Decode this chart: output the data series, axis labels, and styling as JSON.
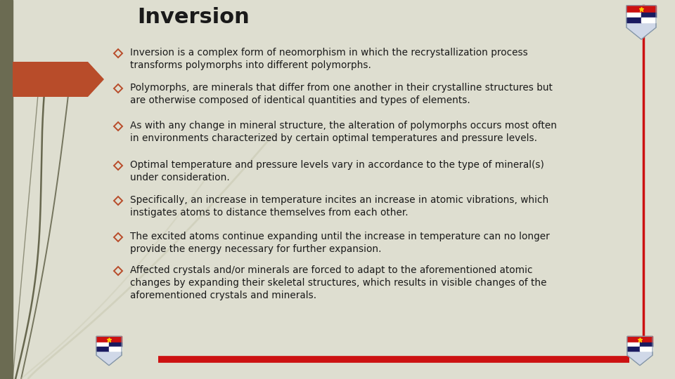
{
  "title": "Inversion",
  "bg_color": "#deded0",
  "left_bar_color": "#6b6b52",
  "arrow_color": "#b84c2a",
  "red_line_color": "#cc1111",
  "right_line_color": "#cc1111",
  "title_color": "#1a1a1a",
  "text_color": "#1a1a1a",
  "bullet_color": "#b84c2a",
  "bullet_points": [
    "Inversion is a complex form of neomorphism in which the recrystallization process\ntransforms polymorphs into different polymorphs.",
    "Polymorphs, are minerals that differ from one another in their crystalline structures but\nare otherwise composed of identical quantities and types of elements.",
    "As with any change in mineral structure, the alteration of polymorphs occurs most often\nin environments characterized by certain optimal temperatures and pressure levels.",
    "Optimal temperature and pressure levels vary in accordance to the type of mineral(s)\nunder consideration.",
    "Specifically, an increase in temperature incites an increase in atomic vibrations, which\ninstigates atoms to distance themselves from each other.",
    "The excited atoms continue expanding until the increase in temperature can no longer\nprovide the energy necessary for further expansion.",
    "Affected crystals and/or minerals are forced to adapt to the aforementioned atomic\nchanges by expanding their skeletal structures, which results in visible changes of the\naforementioned crystals and minerals."
  ],
  "figsize": [
    9.6,
    5.4
  ],
  "dpi": 100
}
